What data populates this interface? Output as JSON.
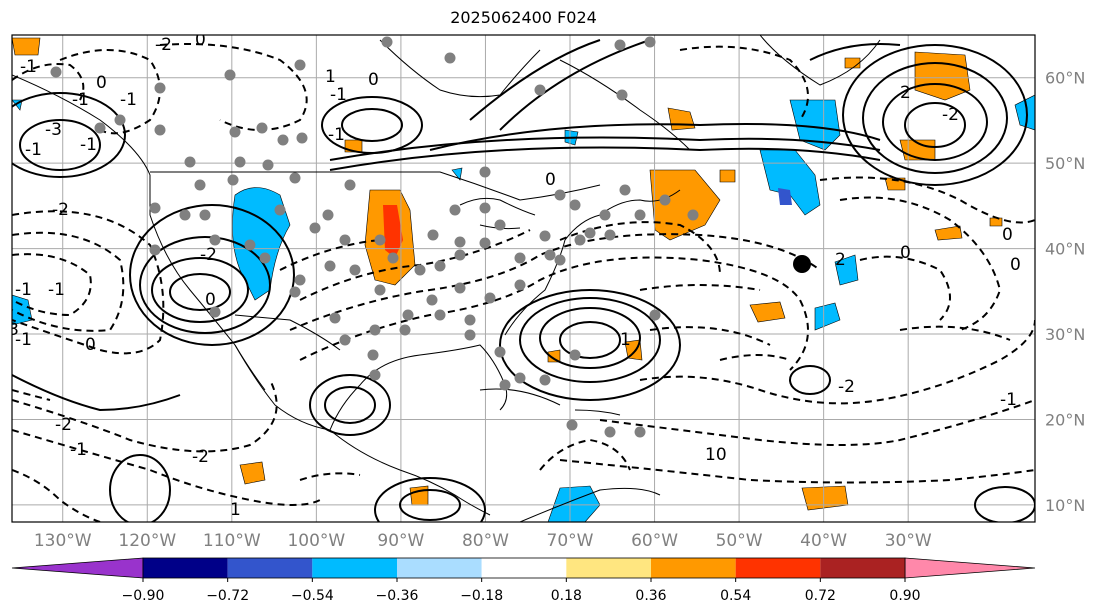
{
  "title": "2025062400 F024",
  "map": {
    "projection": "cylindrical",
    "lon_range": [
      -136,
      -15
    ],
    "lat_range": [
      8,
      65
    ],
    "graticule_step_deg": 10,
    "grid": true,
    "frame_color": "#000000",
    "grid_color": "#aaaaaa",
    "lon_labels": [
      "130°W",
      "120°W",
      "110°W",
      "100°W",
      "90°W",
      "80°W",
      "70°W",
      "60°W",
      "50°W",
      "40°W",
      "30°W"
    ],
    "lat_labels": [
      "60°N",
      "50°N",
      "40°N",
      "30°N",
      "20°N",
      "10°N"
    ],
    "contour_labels": [
      "0",
      "1",
      "0",
      "-2",
      "0",
      "-1",
      "-3",
      "-1",
      "-1",
      "-1",
      "-1",
      "-1",
      "0",
      "-3",
      "-2",
      "-2",
      "1",
      "-1",
      "-2",
      "-1",
      "-1",
      "-1",
      "-1",
      "0",
      "-2",
      "0",
      "1",
      "2",
      "-2",
      "-2",
      "2",
      "0",
      "0",
      "10",
      "0",
      "-1"
    ],
    "station_marker_color": "#808080",
    "highlight_marker_color": "#000000"
  },
  "colorbar": {
    "ticks": [
      "−0.90",
      "−0.72",
      "−0.54",
      "−0.36",
      "−0.18",
      "0.18",
      "0.36",
      "0.54",
      "0.72",
      "0.90"
    ],
    "under_color": "#9933cc",
    "over_color": "#ff88aa",
    "bins": [
      "#000088",
      "#3355cc",
      "#00bbff",
      "#aaddff",
      "#ffffff",
      "#ffe680",
      "#ff9900",
      "#ff3300",
      "#aa2222"
    ]
  }
}
